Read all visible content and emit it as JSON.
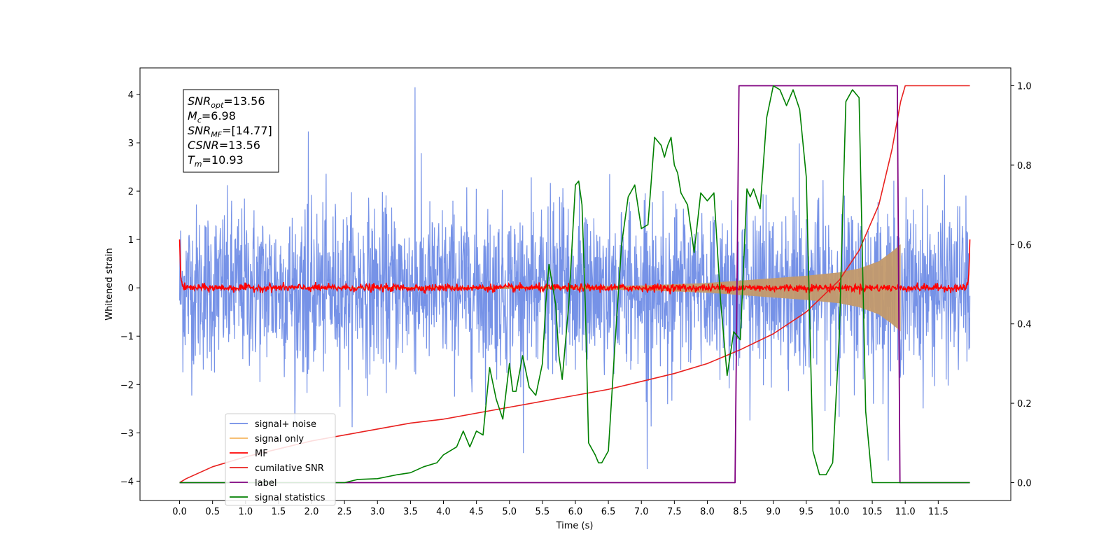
{
  "chart_data": {
    "type": "line",
    "xlabel": "Time (s)",
    "ylabel_left": "Whitened strain",
    "ylabel_right": "",
    "xlim": [
      -0.6,
      12.6
    ],
    "ylim_left": [
      -4.4,
      4.55
    ],
    "ylim_right": [
      -0.045,
      1.045
    ],
    "x_ticks": [
      "0.0",
      "0.5",
      "1.0",
      "1.5",
      "2.0",
      "2.5",
      "3.0",
      "3.5",
      "4.0",
      "4.5",
      "5.0",
      "5.5",
      "6.0",
      "6.5",
      "7.0",
      "7.5",
      "8.0",
      "8.5",
      "9.0",
      "9.5",
      "10.0",
      "10.5",
      "11.0",
      "11.5"
    ],
    "x_tick_values": [
      0,
      0.5,
      1,
      1.5,
      2,
      2.5,
      3,
      3.5,
      4,
      4.5,
      5,
      5.5,
      6,
      6.5,
      7,
      7.5,
      8,
      8.5,
      9,
      9.5,
      10,
      10.5,
      11,
      11.5
    ],
    "y_ticks_left": [
      "4",
      "3",
      "2",
      "1",
      "0",
      "−1",
      "−2",
      "−3",
      "−4"
    ],
    "y_tick_values_left": [
      4,
      3,
      2,
      1,
      0,
      -1,
      -2,
      -3,
      -4
    ],
    "y_ticks_right": [
      "1.0",
      "0.8",
      "0.6",
      "0.4",
      "0.2",
      "0.0"
    ],
    "y_tick_values_right": [
      1.0,
      0.8,
      0.6,
      0.4,
      0.2,
      0.0
    ],
    "grid": false,
    "legend_position": "lower-left",
    "annotation": {
      "snr_opt": {
        "symbol": "SNR",
        "sub": "opt",
        "value": "=13.56"
      },
      "mc": {
        "symbol": "M",
        "sub": "c",
        "value": "=6.98"
      },
      "snr_mf": {
        "symbol": "SNR",
        "sub": "MF",
        "value": "=[14.77]"
      },
      "csnr": {
        "symbol": "CSNR",
        "sub": "",
        "value": "=13.56"
      },
      "tm": {
        "symbol": "T",
        "sub": "m",
        "value": "=10.93"
      }
    },
    "series": [
      {
        "name": "signal+ noise",
        "color": "#6f8ce6",
        "axis": "left",
        "description_kind": "noise_band",
        "x_range": [
          0,
          11.98
        ],
        "noise_std": 0.85,
        "max_peak": 4.15,
        "min_peak": -3.75
      },
      {
        "name": "signal only",
        "color": "#f5b660",
        "axis": "left",
        "kind": "chirp_envelope",
        "x_range": [
          0,
          10.93
        ],
        "envelope_points": [
          [
            0,
            0.0
          ],
          [
            6.0,
            0.03
          ],
          [
            7.0,
            0.05
          ],
          [
            8.0,
            0.1
          ],
          [
            8.5,
            0.15
          ],
          [
            9.0,
            0.2
          ],
          [
            9.5,
            0.25
          ],
          [
            10.0,
            0.32
          ],
          [
            10.3,
            0.4
          ],
          [
            10.6,
            0.55
          ],
          [
            10.8,
            0.75
          ],
          [
            10.93,
            0.9
          ]
        ]
      },
      {
        "name": "MF",
        "color": "#ff0000",
        "axis": "left",
        "kind": "near_zero_noise",
        "x_range": [
          0,
          11.98
        ],
        "start_value": 1.0,
        "end_value": 1.0,
        "noise_std": 0.04
      },
      {
        "name": "cumilative SNR",
        "color": "#e8201e",
        "axis": "right",
        "x": [
          0,
          0.1,
          0.5,
          1.0,
          1.5,
          2.0,
          2.5,
          3.0,
          3.5,
          4.0,
          4.5,
          5.0,
          5.5,
          6.0,
          6.5,
          7.0,
          7.5,
          8.0,
          8.5,
          9.0,
          9.5,
          10.0,
          10.3,
          10.6,
          10.8,
          10.93,
          11.0,
          11.98
        ],
        "y": [
          0.0,
          0.01,
          0.04,
          0.065,
          0.085,
          0.105,
          0.12,
          0.135,
          0.15,
          0.16,
          0.175,
          0.19,
          0.205,
          0.22,
          0.235,
          0.255,
          0.275,
          0.3,
          0.335,
          0.375,
          0.43,
          0.51,
          0.585,
          0.7,
          0.84,
          0.96,
          1.0,
          1.0
        ]
      },
      {
        "name": "label",
        "color": "#800080",
        "axis": "right",
        "x": [
          0,
          8.42,
          8.48,
          10.88,
          10.92,
          11.98
        ],
        "y": [
          0.0,
          0.0,
          1.0,
          1.0,
          0.0,
          0.0
        ]
      },
      {
        "name": "signal statistics",
        "color": "#008000",
        "axis": "right",
        "x": [
          0,
          1.0,
          2.0,
          2.5,
          2.7,
          3.0,
          3.3,
          3.5,
          3.7,
          3.9,
          4.0,
          4.2,
          4.3,
          4.4,
          4.5,
          4.6,
          4.7,
          4.8,
          4.9,
          5.0,
          5.05,
          5.1,
          5.2,
          5.3,
          5.4,
          5.5,
          5.55,
          5.6,
          5.7,
          5.75,
          5.8,
          5.9,
          6.0,
          6.05,
          6.1,
          6.15,
          6.2,
          6.3,
          6.35,
          6.4,
          6.5,
          6.6,
          6.7,
          6.8,
          6.9,
          7.0,
          7.1,
          7.2,
          7.3,
          7.35,
          7.4,
          7.45,
          7.5,
          7.55,
          7.6,
          7.7,
          7.8,
          7.9,
          8.0,
          8.1,
          8.2,
          8.3,
          8.4,
          8.5,
          8.6,
          8.65,
          8.7,
          8.8,
          8.9,
          9.0,
          9.1,
          9.2,
          9.3,
          9.4,
          9.5,
          9.6,
          9.7,
          9.8,
          9.9,
          10.0,
          10.1,
          10.2,
          10.3,
          10.4,
          10.5,
          10.6,
          10.7,
          10.8,
          10.85,
          10.9,
          11.0,
          11.98
        ],
        "y": [
          0.0,
          0.0,
          0.0,
          0.0,
          0.008,
          0.01,
          0.02,
          0.025,
          0.04,
          0.05,
          0.07,
          0.09,
          0.13,
          0.09,
          0.13,
          0.12,
          0.29,
          0.21,
          0.16,
          0.3,
          0.23,
          0.23,
          0.32,
          0.24,
          0.22,
          0.3,
          0.45,
          0.55,
          0.45,
          0.32,
          0.26,
          0.45,
          0.75,
          0.76,
          0.7,
          0.45,
          0.1,
          0.07,
          0.05,
          0.05,
          0.08,
          0.35,
          0.6,
          0.72,
          0.75,
          0.64,
          0.65,
          0.87,
          0.85,
          0.82,
          0.85,
          0.87,
          0.8,
          0.78,
          0.73,
          0.7,
          0.58,
          0.73,
          0.71,
          0.73,
          0.46,
          0.27,
          0.38,
          0.36,
          0.74,
          0.72,
          0.74,
          0.69,
          0.92,
          1.0,
          0.99,
          0.95,
          0.99,
          0.94,
          0.77,
          0.08,
          0.02,
          0.02,
          0.05,
          0.37,
          0.96,
          0.99,
          0.97,
          0.18,
          0.0,
          0.0,
          0.0,
          0.0,
          0.0,
          0.0,
          0.0,
          0.0
        ]
      }
    ]
  }
}
